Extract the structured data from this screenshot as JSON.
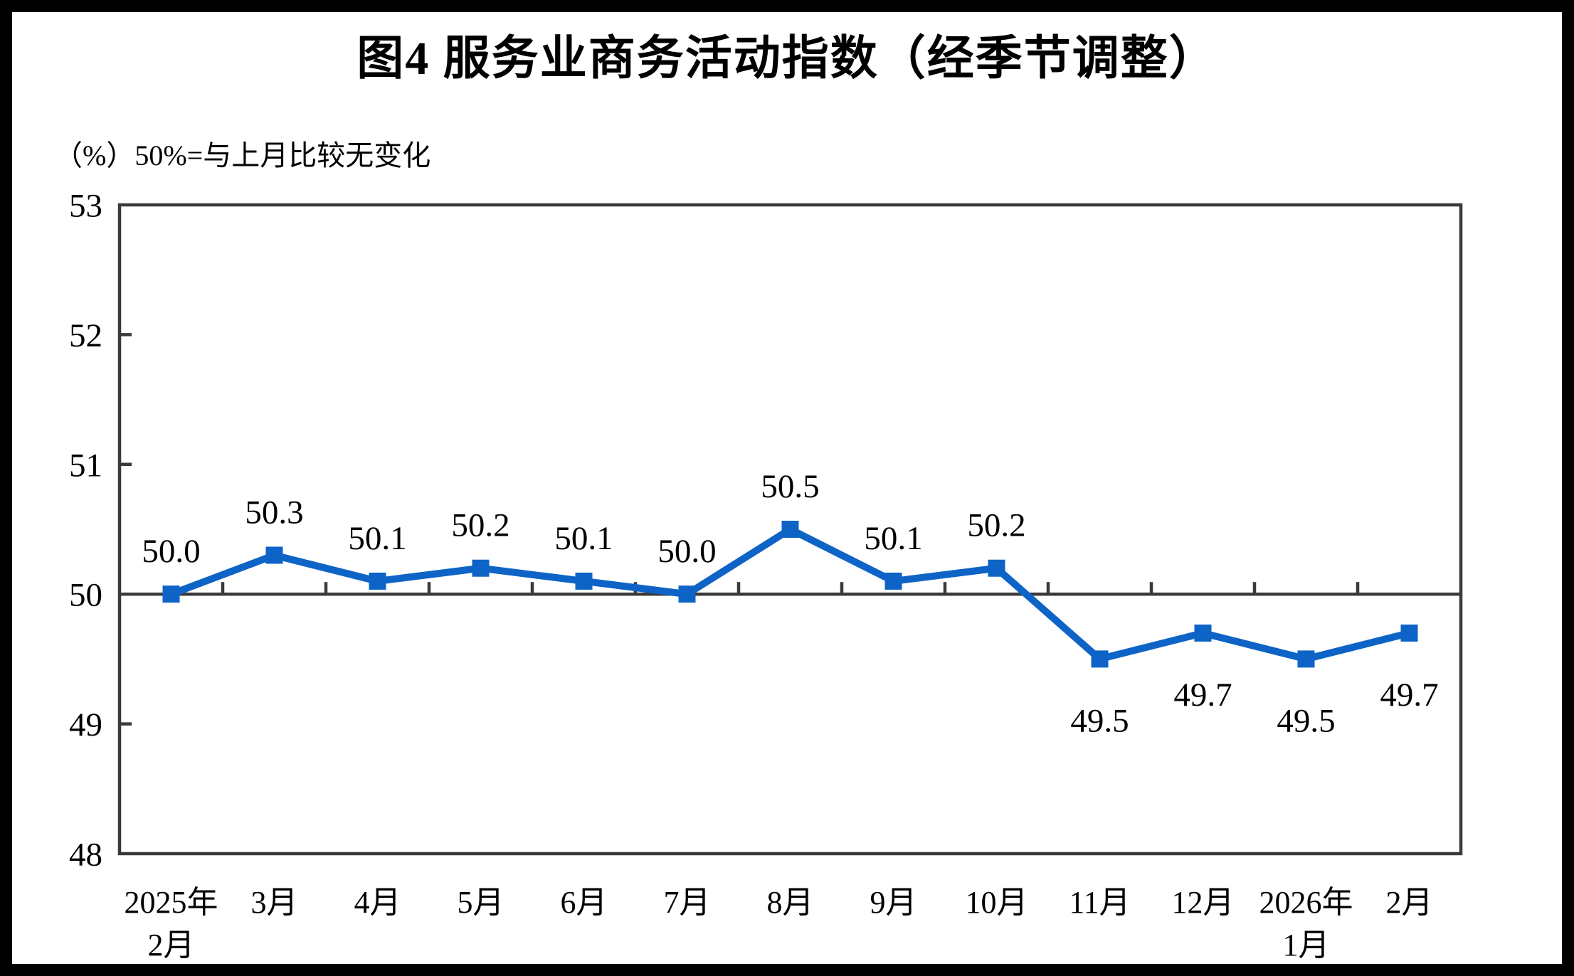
{
  "chart_data": {
    "type": "line",
    "title": "图4  服务业商务活动指数（经季节调整）",
    "unit_note": "（%）50%=与上月比较无变化",
    "categories": [
      "2025年\n2月",
      "3月",
      "4月",
      "5月",
      "6月",
      "7月",
      "8月",
      "9月",
      "10月",
      "11月",
      "12月",
      "2026年\n1月",
      "2月"
    ],
    "values": [
      50.0,
      50.3,
      50.1,
      50.2,
      50.1,
      50.0,
      50.5,
      50.1,
      50.2,
      49.5,
      49.7,
      49.5,
      49.7
    ],
    "labels": [
      "50.0",
      "50.3",
      "50.1",
      "50.2",
      "50.1",
      "50.0",
      "50.5",
      "50.1",
      "50.2",
      "49.5",
      "49.7",
      "49.5",
      "49.7"
    ],
    "xlabel": "",
    "ylabel": "",
    "ylim": [
      48,
      53
    ],
    "yticks": [
      48,
      49,
      50,
      51,
      52,
      53
    ],
    "reference_line": 50,
    "grid": false,
    "legend": false,
    "marker": "square",
    "line_color": "#0d64c6",
    "axis_color": "#3a3a3a",
    "text_color": "#000000",
    "background_color": "#ffffff",
    "page_border_color": "#000000"
  }
}
